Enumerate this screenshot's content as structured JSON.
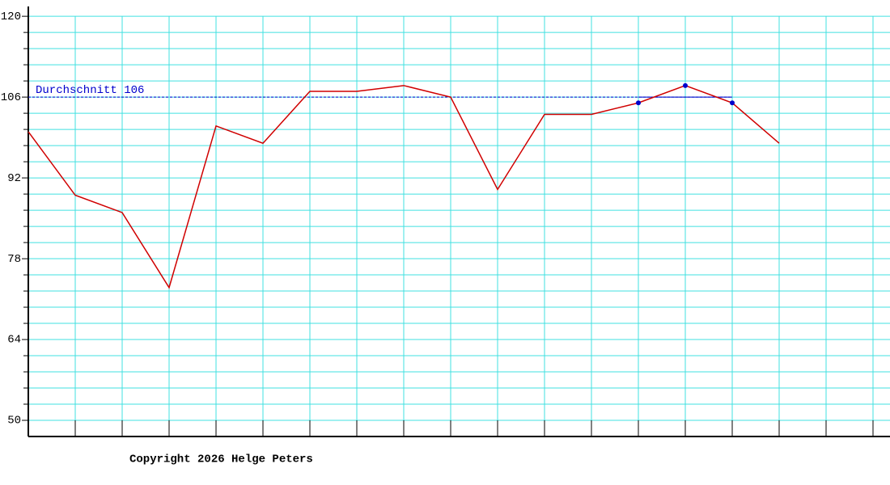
{
  "chart_data": {
    "type": "line",
    "categories": [
      null,
      null,
      null,
      null,
      null,
      null,
      null,
      null,
      null,
      null,
      null,
      null,
      null,
      null,
      null,
      null,
      null,
      null,
      null
    ],
    "series": [
      {
        "color": "#d00000",
        "values": [
          100,
          89,
          86,
          73,
          101,
          98,
          107,
          107,
          108,
          106,
          90,
          103,
          103,
          105,
          108,
          105,
          98,
          null,
          null
        ]
      }
    ],
    "highlight_points": [
      13,
      14,
      15
    ],
    "highlight_color": "#0000cc",
    "average": {
      "value": 106,
      "label": "Durchschnitt 106",
      "color": "#0000cc"
    },
    "ylim": [
      47.2,
      121.7
    ],
    "yticks": [
      50,
      64,
      78,
      92,
      106,
      120
    ],
    "minor_yticks": [
      52.8,
      55.6,
      58.4,
      61.2,
      66.8,
      69.6,
      72.4,
      75.2,
      80.8,
      83.6,
      86.4,
      89.2,
      94.8,
      97.6,
      100.4,
      103.2,
      108.8,
      111.6,
      114.4,
      117.2
    ],
    "grid": true,
    "grid_color": "#40e0e0",
    "footer": "Copyright 2026 Helge Peters"
  }
}
